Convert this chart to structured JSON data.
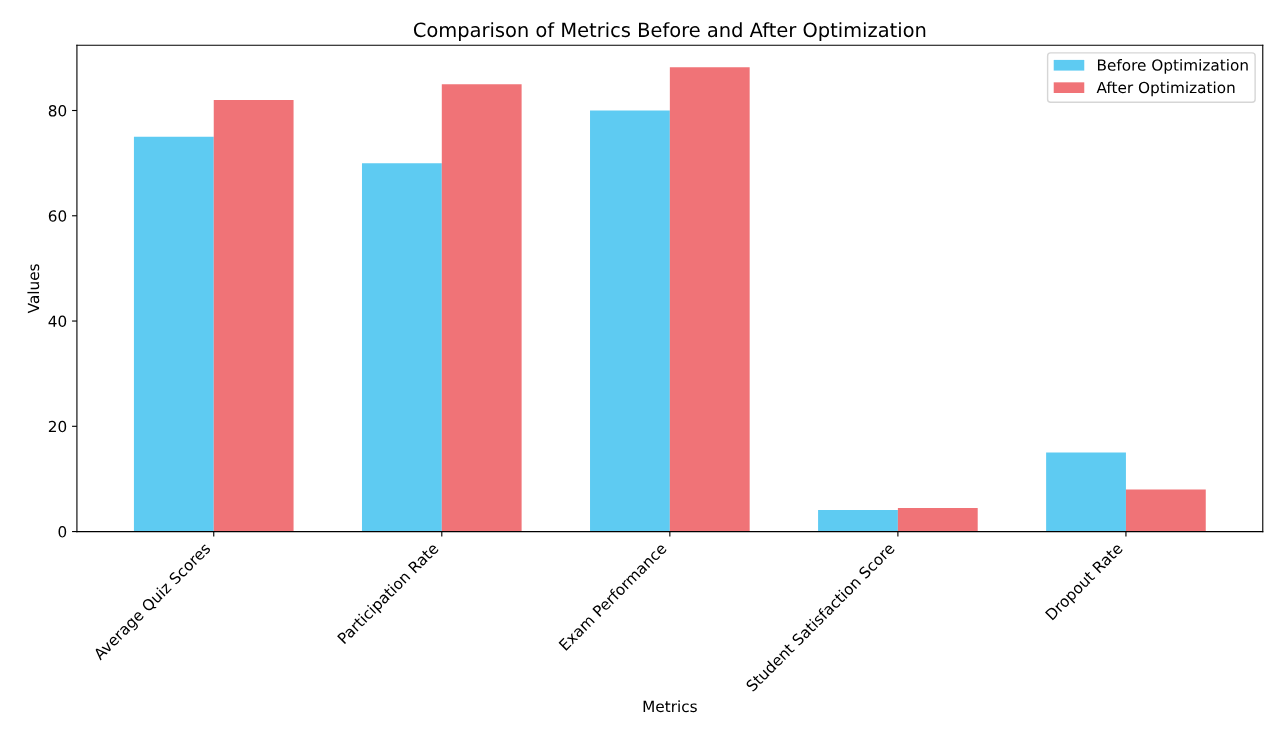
{
  "chart_data": {
    "type": "bar",
    "title": "Comparison of Metrics Before and After Optimization",
    "xlabel": "Metrics",
    "ylabel": "Values",
    "categories": [
      "Average Quiz Scores",
      "Participation Rate",
      "Exam Performance",
      "Student Satisfaction Score",
      "Dropout Rate"
    ],
    "series": [
      {
        "name": "Before Optimization",
        "color": "#5ecbf2",
        "values": [
          75,
          70,
          80,
          4.1,
          15
        ]
      },
      {
        "name": "After Optimization",
        "color": "#f07377",
        "values": [
          82,
          85,
          88.2,
          4.5,
          8
        ]
      }
    ],
    "ylim": [
      0,
      92.4
    ],
    "yticks": [
      0,
      20,
      40,
      60,
      80
    ],
    "legend": "top right",
    "grid": false
  }
}
